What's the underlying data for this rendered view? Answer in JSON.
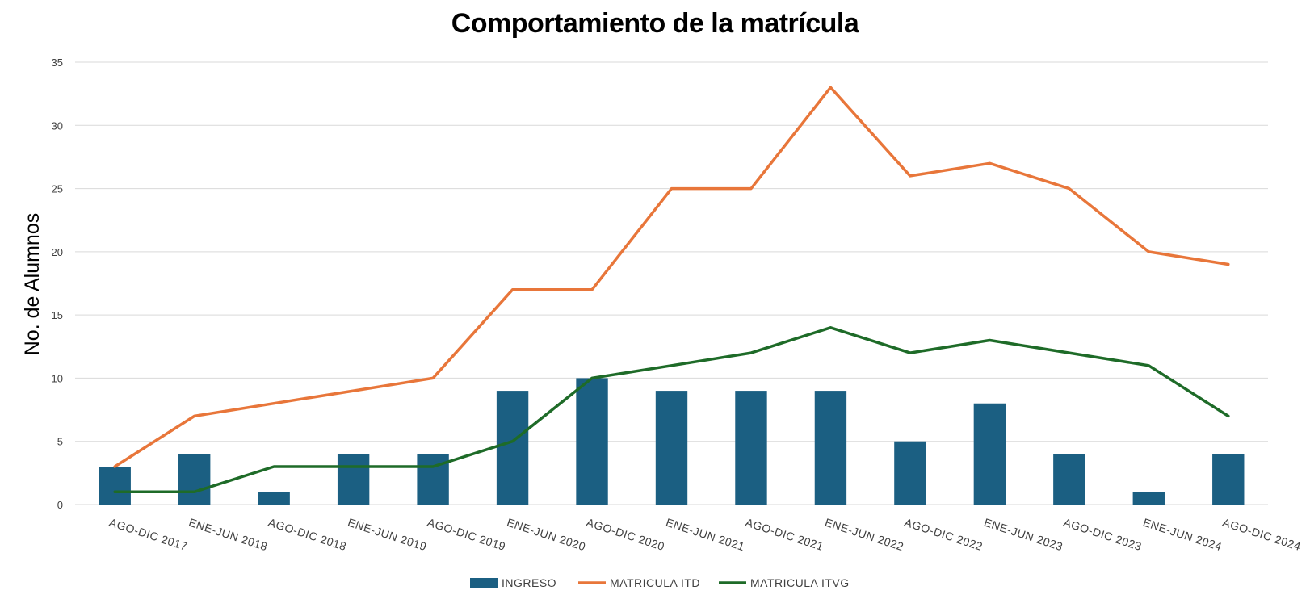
{
  "chart_data": {
    "type": "bar",
    "title": "Comportamiento de la matrícula",
    "xlabel": "",
    "ylabel": "No. de Alumnos",
    "ylim": [
      0,
      35
    ],
    "yticks": [
      "0",
      "5",
      "10",
      "15",
      "20",
      "25",
      "30",
      "35"
    ],
    "grid": true,
    "legend_position": "bottom",
    "categories": [
      "AGO-DIC 2017",
      "ENE-JUN 2018",
      "AGO-DIC 2018",
      "ENE-JUN 2019",
      "AGO-DIC 2019",
      "ENE-JUN 2020",
      "AGO-DIC 2020",
      "ENE-JUN 2021",
      "AGO-DIC 2021",
      "ENE-JUN 2022",
      "AGO-DIC 2022",
      "ENE-JUN 2023",
      "AGO-DIC 2023",
      "ENE-JUN 2024",
      "AGO-DIC 2024"
    ],
    "series": [
      {
        "name": "INGRESO",
        "type": "bar",
        "color": "#1b5f82",
        "values": [
          3,
          4,
          1,
          4,
          4,
          9,
          10,
          9,
          9,
          9,
          5,
          8,
          4,
          1,
          4
        ]
      },
      {
        "name": "MATRICULA ITD",
        "type": "line",
        "color": "#e8763a",
        "values": [
          3,
          7,
          8,
          9,
          10,
          17,
          17,
          25,
          25,
          33,
          26,
          27,
          25,
          20,
          19
        ]
      },
      {
        "name": "MATRICULA ITVG",
        "type": "line",
        "color": "#1e6b28",
        "values": [
          1,
          1,
          3,
          3,
          3,
          5,
          10,
          11,
          12,
          14,
          12,
          13,
          12,
          11,
          7
        ]
      }
    ]
  }
}
